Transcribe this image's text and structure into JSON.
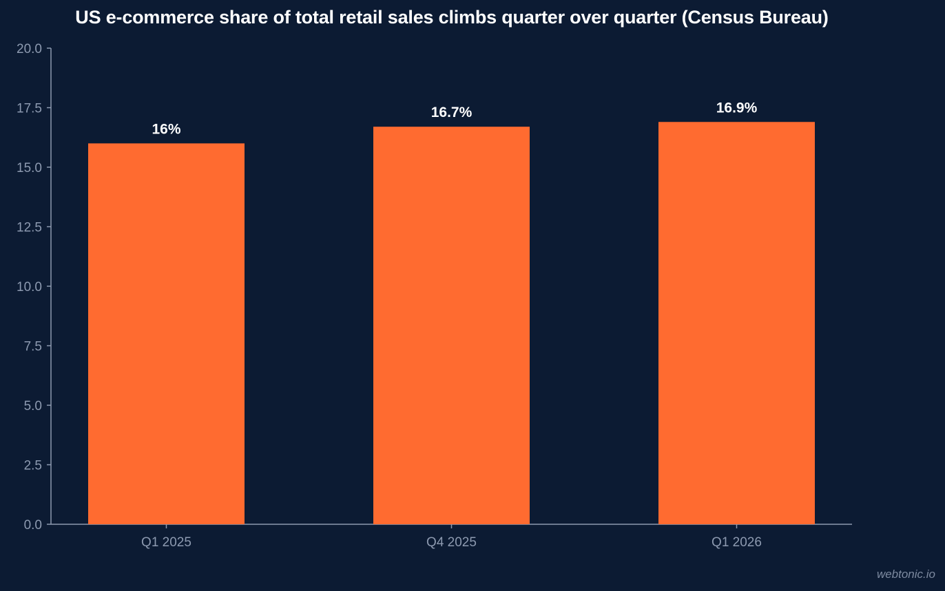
{
  "chart_data": {
    "type": "bar",
    "title": "US e-commerce share of total retail sales climbs quarter over quarter (Census Bureau)",
    "xlabel": "",
    "ylabel": "",
    "categories": [
      "Q1 2025",
      "Q4 2025",
      "Q1 2026"
    ],
    "values": [
      16.0,
      16.7,
      16.9
    ],
    "data_labels": [
      "16%",
      "16.7%",
      "16.9%"
    ],
    "ylim": [
      0,
      20
    ],
    "yticks": [
      "0.0",
      "2.5",
      "5.0",
      "7.5",
      "10.0",
      "12.5",
      "15.0",
      "17.5",
      "20.0"
    ],
    "grid": false,
    "legend": "none",
    "colors": {
      "background": "#0c1b33",
      "bar": "#ff6b30",
      "axis": "#8d9ab0",
      "tick_text": "#8d9ab0",
      "label_text": "#ffffff"
    }
  },
  "watermark": "webtonic.io"
}
